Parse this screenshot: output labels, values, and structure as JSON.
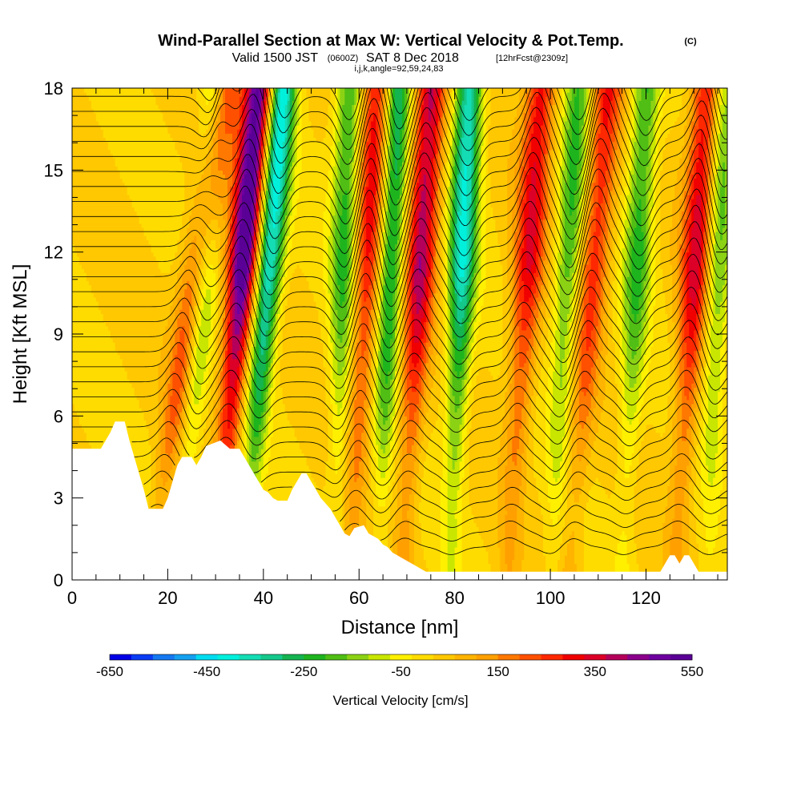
{
  "header": {
    "title": "Wind-Parallel Section at Max W: Vertical Velocity & Pot.Temp.",
    "title_unit": "(C)",
    "valid_prefix": "Valid 1500 JST",
    "valid_utc": "(0600Z)",
    "valid_date": "SAT 8 Dec 2018",
    "forecast": "[12hrFcst@2309z]",
    "indices": "i,j,k,angle=92,59,24,83"
  },
  "chart_data": {
    "type": "heatmap",
    "xlabel": "Distance [nm]",
    "ylabel": "Height [Kft MSL]",
    "xlim": [
      0,
      137
    ],
    "ylim": [
      0,
      18
    ],
    "x_ticks": [
      0,
      20,
      40,
      60,
      80,
      100,
      120
    ],
    "y_ticks": [
      0,
      3,
      6,
      9,
      12,
      15,
      18
    ],
    "x_tick_labels": [
      "0",
      "20",
      "40",
      "60",
      "80",
      "100",
      "120"
    ],
    "y_tick_labels": [
      "0",
      "3",
      "6",
      "9",
      "12",
      "15",
      "18"
    ],
    "colorbar": {
      "label": "Vertical Velocity [cm/s]",
      "min": -650,
      "max": 550,
      "step": 50,
      "tick_values": [
        -650,
        -450,
        -250,
        -50,
        150,
        350,
        550
      ],
      "tick_labels": [
        "-650",
        "-450",
        "-250",
        "-50",
        "150",
        "350",
        "550"
      ],
      "colors": [
        "#0000e6",
        "#0a3cf5",
        "#1478f0",
        "#14a0f0",
        "#00dcf0",
        "#00f0dc",
        "#14dcb4",
        "#14c88c",
        "#14b450",
        "#1eb41e",
        "#50be14",
        "#8cd214",
        "#c8e600",
        "#fff000",
        "#ffdc00",
        "#ffc800",
        "#ffb400",
        "#ffa000",
        "#ff7800",
        "#ff5000",
        "#ff2800",
        "#f00000",
        "#dc0028",
        "#b4005a",
        "#8c008c",
        "#6e00a0",
        "#5a0096"
      ]
    },
    "updraft_columns": [
      {
        "x_base": 16,
        "x_top": 32,
        "peak": 300
      },
      {
        "x_base": 30,
        "x_top": 39,
        "peak": 540
      },
      {
        "x_base": 58,
        "x_top": 64,
        "peak": 300
      },
      {
        "x_base": 69,
        "x_top": 75,
        "peak": 380
      },
      {
        "x_base": 91,
        "x_top": 98,
        "peak": 300
      },
      {
        "x_base": 104,
        "x_top": 112,
        "peak": 260
      },
      {
        "x_base": 126,
        "x_top": 133,
        "peak": 340
      }
    ],
    "downdraft_columns": [
      {
        "x_base": 23,
        "x_top": 30,
        "peak": -240
      },
      {
        "x_base": 36,
        "x_top": 44,
        "peak": -450
      },
      {
        "x_base": 55,
        "x_top": 58,
        "peak": -250
      },
      {
        "x_base": 64,
        "x_top": 68,
        "peak": -330
      },
      {
        "x_base": 79,
        "x_top": 83,
        "peak": -400
      },
      {
        "x_base": 100,
        "x_top": 106,
        "peak": -230
      },
      {
        "x_base": 115,
        "x_top": 120,
        "peak": -240
      },
      {
        "x_base": 133,
        "x_top": 136,
        "peak": -220
      }
    ],
    "terrain_kft": [
      [
        0,
        4.8
      ],
      [
        6,
        4.8
      ],
      [
        7,
        5.1
      ],
      [
        8,
        5.4
      ],
      [
        9,
        5.8
      ],
      [
        11,
        5.8
      ],
      [
        12,
        5.1
      ],
      [
        13,
        4.5
      ],
      [
        14,
        3.9
      ],
      [
        15,
        3.3
      ],
      [
        16,
        2.6
      ],
      [
        19,
        2.6
      ],
      [
        20,
        3.0
      ],
      [
        21,
        3.6
      ],
      [
        22,
        4.2
      ],
      [
        23,
        4.5
      ],
      [
        25,
        4.5
      ],
      [
        26,
        4.2
      ],
      [
        27,
        4.5
      ],
      [
        28,
        4.9
      ],
      [
        31,
        5.1
      ],
      [
        33,
        4.8
      ],
      [
        35,
        4.8
      ],
      [
        36,
        4.5
      ],
      [
        37,
        4.2
      ],
      [
        38,
        3.9
      ],
      [
        39,
        3.6
      ],
      [
        40,
        3.3
      ],
      [
        41,
        3.2
      ],
      [
        42,
        3.0
      ],
      [
        43,
        2.9
      ],
      [
        45,
        2.9
      ],
      [
        46,
        3.3
      ],
      [
        47,
        3.6
      ],
      [
        48,
        3.9
      ],
      [
        49,
        3.9
      ],
      [
        50,
        3.6
      ],
      [
        51,
        3.3
      ],
      [
        52,
        3.0
      ],
      [
        53,
        2.8
      ],
      [
        54,
        2.6
      ],
      [
        55,
        2.3
      ],
      [
        56,
        2.0
      ],
      [
        57,
        1.7
      ],
      [
        58,
        1.6
      ],
      [
        59,
        1.9
      ],
      [
        61,
        2.0
      ],
      [
        62,
        1.7
      ],
      [
        63,
        1.6
      ],
      [
        64,
        1.5
      ],
      [
        65,
        1.3
      ],
      [
        66,
        1.2
      ],
      [
        67,
        1.0
      ],
      [
        68,
        0.9
      ],
      [
        69,
        0.8
      ],
      [
        70,
        0.7
      ],
      [
        71,
        0.6
      ],
      [
        72,
        0.5
      ],
      [
        73,
        0.4
      ],
      [
        74,
        0.3
      ],
      [
        123,
        0.3
      ],
      [
        124,
        0.6
      ],
      [
        125,
        0.9
      ],
      [
        126,
        0.9
      ],
      [
        127,
        0.6
      ],
      [
        128,
        0.9
      ],
      [
        129,
        0.9
      ],
      [
        130,
        0.6
      ],
      [
        131,
        0.3
      ],
      [
        137,
        0.3
      ]
    ]
  }
}
